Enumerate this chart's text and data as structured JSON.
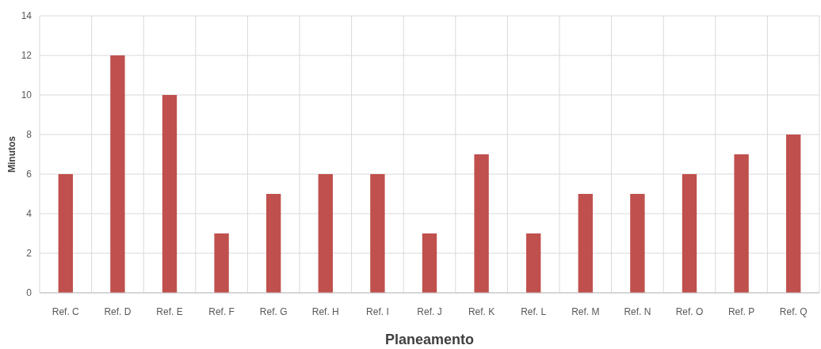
{
  "chart_data": {
    "type": "bar",
    "xlabel": "Planeamento",
    "ylabel": "Minutos",
    "categories": [
      "Ref. C",
      "Ref. D",
      "Ref. E",
      "Ref. F",
      "Ref. G",
      "Ref. H",
      "Ref. I",
      "Ref. J",
      "Ref. K",
      "Ref. L",
      "Ref. M",
      "Ref. N",
      "Ref. O",
      "Ref. P",
      "Ref. Q"
    ],
    "values": [
      6,
      12,
      10,
      3,
      5,
      6,
      6,
      3,
      7,
      3,
      5,
      5,
      6,
      7,
      8
    ],
    "color": "#c0504d",
    "ylim": [
      0,
      14
    ],
    "yticks": [
      0,
      2,
      4,
      6,
      8,
      10,
      12,
      14
    ],
    "grid": true
  }
}
